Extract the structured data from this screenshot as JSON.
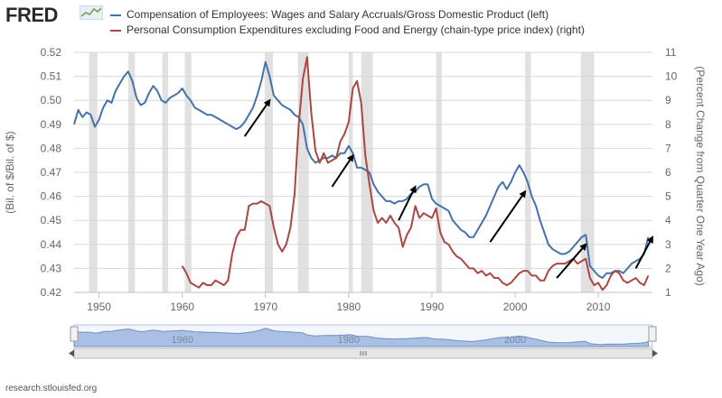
{
  "brand": {
    "name": "FRED"
  },
  "source": "research.stlouisfed.org",
  "colors": {
    "series_left": "#4572a7",
    "series_right": "#aa4643",
    "recession": "#e1e1e1",
    "axis_text": "#666666",
    "arrow": "#000000",
    "nav_fill": "#a9c0e4"
  },
  "chart_data": {
    "type": "line",
    "series": [
      {
        "name": "Compensation of Employees: Wages and Salary Accruals/Gross Domestic Product (left)",
        "axis": "left",
        "x": [
          1947.0,
          1947.5,
          1948.0,
          1948.5,
          1949.0,
          1949.5,
          1950.0,
          1950.5,
          1951.0,
          1951.5,
          1952.0,
          1952.5,
          1953.0,
          1953.5,
          1954.0,
          1954.5,
          1955.0,
          1955.5,
          1956.0,
          1956.5,
          1957.0,
          1957.5,
          1958.0,
          1958.5,
          1959.0,
          1959.5,
          1960.0,
          1960.5,
          1961.0,
          1961.5,
          1962.0,
          1962.5,
          1963.0,
          1963.5,
          1964.0,
          1964.5,
          1965.0,
          1965.5,
          1966.0,
          1966.5,
          1967.0,
          1967.5,
          1968.0,
          1968.5,
          1969.0,
          1969.5,
          1970.0,
          1970.5,
          1971.0,
          1971.5,
          1972.0,
          1972.5,
          1973.0,
          1973.5,
          1974.0,
          1974.5,
          1975.0,
          1975.5,
          1976.0,
          1976.5,
          1977.0,
          1977.5,
          1978.0,
          1978.5,
          1979.0,
          1979.5,
          1980.0,
          1980.5,
          1981.0,
          1981.5,
          1982.0,
          1982.5,
          1983.0,
          1983.5,
          1984.0,
          1984.5,
          1985.0,
          1985.5,
          1986.0,
          1986.5,
          1987.0,
          1987.5,
          1988.0,
          1988.5,
          1989.0,
          1989.5,
          1990.0,
          1990.5,
          1991.0,
          1991.5,
          1992.0,
          1992.5,
          1993.0,
          1993.5,
          1994.0,
          1994.5,
          1995.0,
          1995.5,
          1996.0,
          1996.5,
          1997.0,
          1997.5,
          1998.0,
          1998.5,
          1999.0,
          1999.5,
          2000.0,
          2000.5,
          2001.0,
          2001.5,
          2002.0,
          2002.5,
          2003.0,
          2003.5,
          2004.0,
          2004.5,
          2005.0,
          2005.5,
          2006.0,
          2006.5,
          2007.0,
          2007.5,
          2008.0,
          2008.5,
          2009.0,
          2009.5,
          2010.0,
          2010.5,
          2011.0,
          2011.5,
          2012.0,
          2012.5,
          2013.0,
          2013.5,
          2014.0,
          2014.5,
          2015.0,
          2015.5,
          2016.0
        ],
        "values": [
          0.49,
          0.496,
          0.493,
          0.495,
          0.494,
          0.489,
          0.492,
          0.497,
          0.5,
          0.499,
          0.504,
          0.507,
          0.51,
          0.512,
          0.508,
          0.501,
          0.498,
          0.499,
          0.503,
          0.506,
          0.504,
          0.5,
          0.499,
          0.501,
          0.502,
          0.503,
          0.505,
          0.502,
          0.5,
          0.497,
          0.496,
          0.495,
          0.494,
          0.494,
          0.493,
          0.492,
          0.491,
          0.49,
          0.489,
          0.488,
          0.489,
          0.491,
          0.494,
          0.497,
          0.502,
          0.508,
          0.516,
          0.51,
          0.502,
          0.5,
          0.498,
          0.497,
          0.496,
          0.494,
          0.493,
          0.49,
          0.48,
          0.476,
          0.474,
          0.475,
          0.476,
          0.476,
          0.477,
          0.476,
          0.478,
          0.478,
          0.481,
          0.478,
          0.472,
          0.472,
          0.471,
          0.47,
          0.465,
          0.462,
          0.46,
          0.458,
          0.458,
          0.457,
          0.458,
          0.458,
          0.459,
          0.461,
          0.462,
          0.464,
          0.465,
          0.465,
          0.459,
          0.457,
          0.456,
          0.455,
          0.454,
          0.45,
          0.448,
          0.446,
          0.445,
          0.443,
          0.443,
          0.446,
          0.449,
          0.452,
          0.456,
          0.46,
          0.464,
          0.466,
          0.463,
          0.466,
          0.47,
          0.473,
          0.47,
          0.466,
          0.46,
          0.456,
          0.45,
          0.445,
          0.44,
          0.438,
          0.437,
          0.436,
          0.436,
          0.437,
          0.439,
          0.441,
          0.443,
          0.444,
          0.431,
          0.429,
          0.427,
          0.426,
          0.428,
          0.428,
          0.429,
          0.429,
          0.428,
          0.43,
          0.432,
          0.433,
          0.434,
          0.436,
          0.443
        ]
      },
      {
        "name": "Personal Consumption Expenditures excluding Food and Energy (chain-type price index) (right)",
        "axis": "right",
        "x": [
          1960.0,
          1960.5,
          1961.0,
          1961.5,
          1962.0,
          1962.5,
          1963.0,
          1963.5,
          1964.0,
          1964.5,
          1965.0,
          1965.5,
          1966.0,
          1966.5,
          1967.0,
          1967.5,
          1968.0,
          1968.5,
          1969.0,
          1969.5,
          1970.0,
          1970.5,
          1971.0,
          1971.5,
          1972.0,
          1972.5,
          1973.0,
          1973.5,
          1974.0,
          1974.5,
          1975.0,
          1975.5,
          1976.0,
          1976.5,
          1977.0,
          1977.5,
          1978.0,
          1978.5,
          1979.0,
          1979.5,
          1980.0,
          1980.5,
          1981.0,
          1981.5,
          1982.0,
          1982.5,
          1983.0,
          1983.5,
          1984.0,
          1984.5,
          1985.0,
          1985.5,
          1986.0,
          1986.5,
          1987.0,
          1987.5,
          1988.0,
          1988.5,
          1989.0,
          1989.5,
          1990.0,
          1990.5,
          1991.0,
          1991.5,
          1992.0,
          1992.5,
          1993.0,
          1993.5,
          1994.0,
          1994.5,
          1995.0,
          1995.5,
          1996.0,
          1996.5,
          1997.0,
          1997.5,
          1998.0,
          1998.5,
          1999.0,
          1999.5,
          2000.0,
          2000.5,
          2001.0,
          2001.5,
          2002.0,
          2002.5,
          2003.0,
          2003.5,
          2004.0,
          2004.5,
          2005.0,
          2005.5,
          2006.0,
          2006.5,
          2007.0,
          2007.5,
          2008.0,
          2008.5,
          2009.0,
          2009.5,
          2010.0,
          2010.5,
          2011.0,
          2011.5,
          2012.0,
          2012.5,
          2013.0,
          2013.5,
          2014.0,
          2014.5,
          2015.0,
          2015.5,
          2016.0
        ],
        "values": [
          2.1,
          1.8,
          1.4,
          1.3,
          1.2,
          1.4,
          1.3,
          1.3,
          1.5,
          1.4,
          1.3,
          1.5,
          2.6,
          3.3,
          3.6,
          3.6,
          4.6,
          4.7,
          4.7,
          4.8,
          4.7,
          4.6,
          3.7,
          3.0,
          2.7,
          3.0,
          3.7,
          5.1,
          8.0,
          9.9,
          10.8,
          8.5,
          6.9,
          6.4,
          6.8,
          6.4,
          6.5,
          6.6,
          7.3,
          7.6,
          8.1,
          9.5,
          9.8,
          8.9,
          6.7,
          5.5,
          4.4,
          3.9,
          4.1,
          3.9,
          4.2,
          3.9,
          3.7,
          2.9,
          3.4,
          3.7,
          4.6,
          4.1,
          4.3,
          4.2,
          4.1,
          4.5,
          3.5,
          3.1,
          3.0,
          2.7,
          2.5,
          2.4,
          2.2,
          2.0,
          2.0,
          1.8,
          1.9,
          1.7,
          1.8,
          1.6,
          1.6,
          1.4,
          1.3,
          1.4,
          1.6,
          1.8,
          1.9,
          1.9,
          1.7,
          1.7,
          1.5,
          1.5,
          1.9,
          2.1,
          2.2,
          2.2,
          2.2,
          2.3,
          2.4,
          2.2,
          2.3,
          2.4,
          1.6,
          1.3,
          1.4,
          1.1,
          1.3,
          1.7,
          1.9,
          1.8,
          1.5,
          1.4,
          1.5,
          1.6,
          1.4,
          1.3,
          1.7
        ]
      }
    ],
    "left_axis": {
      "label": "(Bil. of $/Bil. of $)",
      "ylim": [
        0.42,
        0.52
      ],
      "ticks": [
        "0.42",
        "0.43",
        "0.44",
        "0.45",
        "0.46",
        "0.47",
        "0.48",
        "0.49",
        "0.50",
        "0.51",
        "0.52"
      ]
    },
    "right_axis": {
      "label": "(Percent Change from Quarter One Year Ago)",
      "ylim": [
        1,
        11
      ],
      "ticks": [
        "1",
        "2",
        "3",
        "4",
        "5",
        "6",
        "7",
        "8",
        "9",
        "10",
        "11"
      ]
    },
    "x_axis": {
      "xlim": [
        1947,
        2016.5
      ],
      "ticks": [
        "1950",
        "1960",
        "1970",
        "1980",
        "1990",
        "2000",
        "2010"
      ]
    },
    "navigator_ticks": [
      "1960",
      "1980",
      "2000"
    ],
    "recessions": [
      [
        1948.8,
        1949.8
      ],
      [
        1953.5,
        1954.3
      ],
      [
        1957.6,
        1958.3
      ],
      [
        1960.3,
        1961.1
      ],
      [
        1969.9,
        1970.9
      ],
      [
        1973.9,
        1975.2
      ],
      [
        1980.0,
        1980.5
      ],
      [
        1981.5,
        1982.9
      ],
      [
        1990.5,
        1991.2
      ],
      [
        2001.2,
        2001.9
      ],
      [
        2007.9,
        2009.5
      ]
    ],
    "annotations": [
      {
        "type": "arrow",
        "from": [
          1967.5,
          0.485
        ],
        "to": [
          1970.5,
          0.5
        ]
      },
      {
        "type": "arrow",
        "from": [
          1978.0,
          0.464
        ],
        "to": [
          1980.5,
          0.477
        ]
      },
      {
        "type": "arrow",
        "from": [
          1986.0,
          0.45
        ],
        "to": [
          1988.0,
          0.464
        ]
      },
      {
        "type": "arrow",
        "from": [
          1997.0,
          0.441
        ],
        "to": [
          2001.2,
          0.462
        ]
      },
      {
        "type": "arrow",
        "from": [
          2005.0,
          0.426
        ],
        "to": [
          2008.5,
          0.44
        ]
      },
      {
        "type": "arrow",
        "from": [
          2014.5,
          0.43
        ],
        "to": [
          2016.5,
          0.443
        ]
      }
    ]
  }
}
